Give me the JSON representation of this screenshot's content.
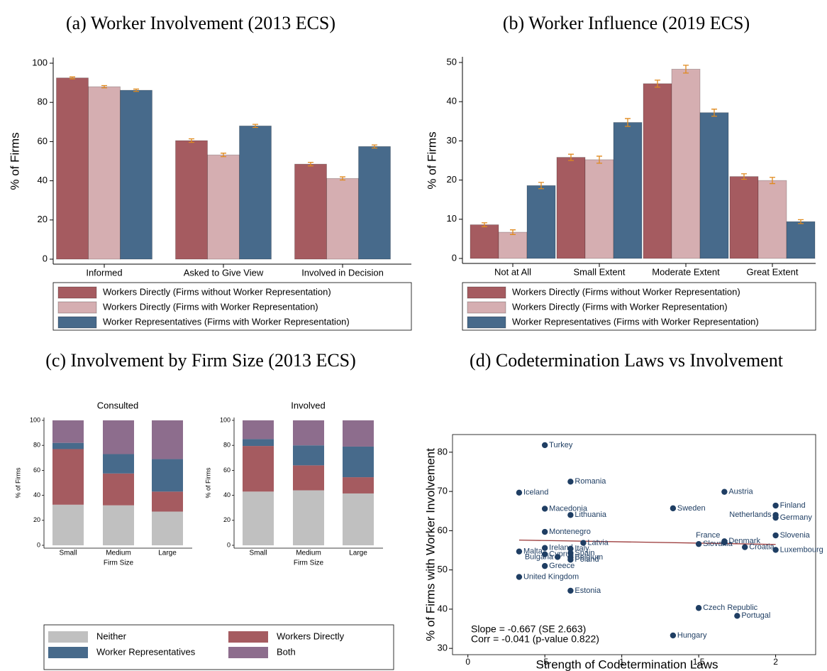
{
  "chart_data": [
    {
      "type": "grouped_bar",
      "title": "(a) Worker Involvement (2013 ECS)",
      "ylabel": "% of Firms",
      "categories": [
        "Informed",
        "Asked to Give View",
        "Involved in Decision"
      ],
      "ylim": [
        0,
        100
      ],
      "yticks": [
        0,
        20,
        40,
        60,
        80,
        100
      ],
      "error_color": "#e08a1e",
      "legend": "bottom",
      "series": [
        {
          "name": "Workers Directly (Firms without Worker Representation)",
          "color": "#a55b60",
          "values": [
            92.5,
            60.5,
            48.5
          ],
          "errors": [
            0.5,
            0.9,
            0.9
          ]
        },
        {
          "name": "Workers Directly (Firms with Worker Representation)",
          "color": "#d5aeb1",
          "values": [
            88,
            53.2,
            41.2
          ],
          "errors": [
            0.6,
            0.9,
            0.8
          ]
        },
        {
          "name": "Worker Representatives (Firms with Worker Representation)",
          "color": "#476a8b",
          "values": [
            86.2,
            68,
            57.5
          ],
          "errors": [
            0.6,
            0.8,
            0.8
          ]
        }
      ]
    },
    {
      "type": "grouped_bar",
      "title": "(b) Worker Influence (2019 ECS)",
      "ylabel": "% of Firms",
      "categories": [
        "Not at All",
        "Small Extent",
        "Moderate Extent",
        "Great Extent"
      ],
      "ylim": [
        0,
        50
      ],
      "yticks": [
        0,
        10,
        20,
        30,
        40,
        50
      ],
      "error_color": "#e08a1e",
      "legend": "bottom",
      "series": [
        {
          "name": "Workers Directly (Firms without Worker Representation)",
          "color": "#a55b60",
          "values": [
            8.6,
            25.8,
            44.6,
            20.9
          ],
          "errors": [
            0.5,
            0.8,
            0.9,
            0.7
          ]
        },
        {
          "name": "Workers Directly (Firms with Worker Representation)",
          "color": "#d5aeb1",
          "values": [
            6.7,
            25.2,
            48.3,
            19.9
          ],
          "errors": [
            0.6,
            0.9,
            1.0,
            0.8
          ]
        },
        {
          "name": "Worker Representatives (Firms with Worker Representation)",
          "color": "#476a8b",
          "values": [
            18.6,
            34.7,
            37.2,
            9.4
          ],
          "errors": [
            0.8,
            1.0,
            0.9,
            0.5
          ]
        }
      ]
    },
    {
      "type": "stacked_bar",
      "title": "(c) Involvement by Firm Size (2013 ECS)",
      "ylabel": "% of Firms",
      "xlabel": "Firm Size",
      "categories": [
        "Small",
        "Medium",
        "Large"
      ],
      "ylim": [
        0,
        100
      ],
      "yticks": [
        0,
        20,
        40,
        60,
        80,
        100
      ],
      "legend": "bottom",
      "series": [
        {
          "name": "Neither",
          "color": "#c0c0c0"
        },
        {
          "name": "Workers Directly",
          "color": "#a55b60"
        },
        {
          "name": "Worker Representatives",
          "color": "#476a8b"
        },
        {
          "name": "Both",
          "color": "#8d6d8d"
        }
      ],
      "panels": [
        {
          "title": "Consulted",
          "values": [
            [
              32.5,
              32,
              27
            ],
            [
              44.5,
              25.5,
              16
            ],
            [
              5,
              15.5,
              26
            ],
            [
              18,
              27,
              31
            ]
          ]
        },
        {
          "title": "Involved",
          "values": [
            [
              43,
              44,
              41.5
            ],
            [
              36.5,
              20,
              13
            ],
            [
              5.5,
              16,
              24.5
            ],
            [
              15,
              20,
              21
            ]
          ]
        }
      ]
    },
    {
      "type": "scatter",
      "title": "(d) Codetermination Laws vs Involvement",
      "xlabel": "Strength of Codetermination Laws",
      "ylabel": "% of Firms with Worker Involvement",
      "xlim": [
        -0.1,
        2.26
      ],
      "ylim": [
        28.4,
        84.5
      ],
      "xticks": [
        0,
        {
          "value": 0.5,
          "label": ".5"
        },
        1,
        1.5,
        2
      ],
      "yticks": [
        30,
        40,
        50,
        60,
        70,
        80
      ],
      "color": "#1f3e63",
      "labels": [
        "Turkey",
        "Romania",
        "Iceland",
        "Austria",
        "Macedonia",
        "Sweden",
        "Finland",
        "Lithuania",
        "Netherlands",
        "Germany",
        "Montenegro",
        "Slovenia",
        "France",
        "Denmark",
        "Slovakia",
        "Latvia",
        "Croatia",
        "Luxembourg",
        "Ireland",
        "Italy",
        "Malta",
        "Cyprus",
        "Spain",
        "Bulgaria",
        "Belgium",
        "Poland",
        "Greece",
        "United Kingdom",
        "Estonia",
        "Czech Republic",
        "Portugal",
        "Hungary"
      ],
      "x": [
        0.5,
        0.667,
        0.333,
        1.667,
        0.5,
        1.333,
        2,
        0.667,
        2,
        2,
        0.5,
        2,
        1.667,
        1.667,
        1.5,
        0.75,
        1.8,
        2,
        0.5,
        0.667,
        0.333,
        0.5,
        0.667,
        0.583,
        0.667,
        0.667,
        0.5,
        0.333,
        0.667,
        1.5,
        1.75,
        1.333
      ],
      "values": [
        81.8,
        72.5,
        69.7,
        69.9,
        65.6,
        65.7,
        66.4,
        64.0,
        64.0,
        63.3,
        59.7,
        58.8,
        57.0,
        57.3,
        56.6,
        56.9,
        55.8,
        55.1,
        55.6,
        55.4,
        54.7,
        54.0,
        54.3,
        53.3,
        53.2,
        52.6,
        51.0,
        48.2,
        44.7,
        40.3,
        38.3,
        33.3
      ],
      "fit": {
        "color": "#9b3a3a",
        "x": [
          0.333,
          2
        ],
        "values": [
          57.6,
          56.5
        ]
      },
      "annotations": [
        "Slope = -0.667 (SE 2.663)",
        "Corr = -0.041 (p-value 0.822)"
      ]
    }
  ]
}
